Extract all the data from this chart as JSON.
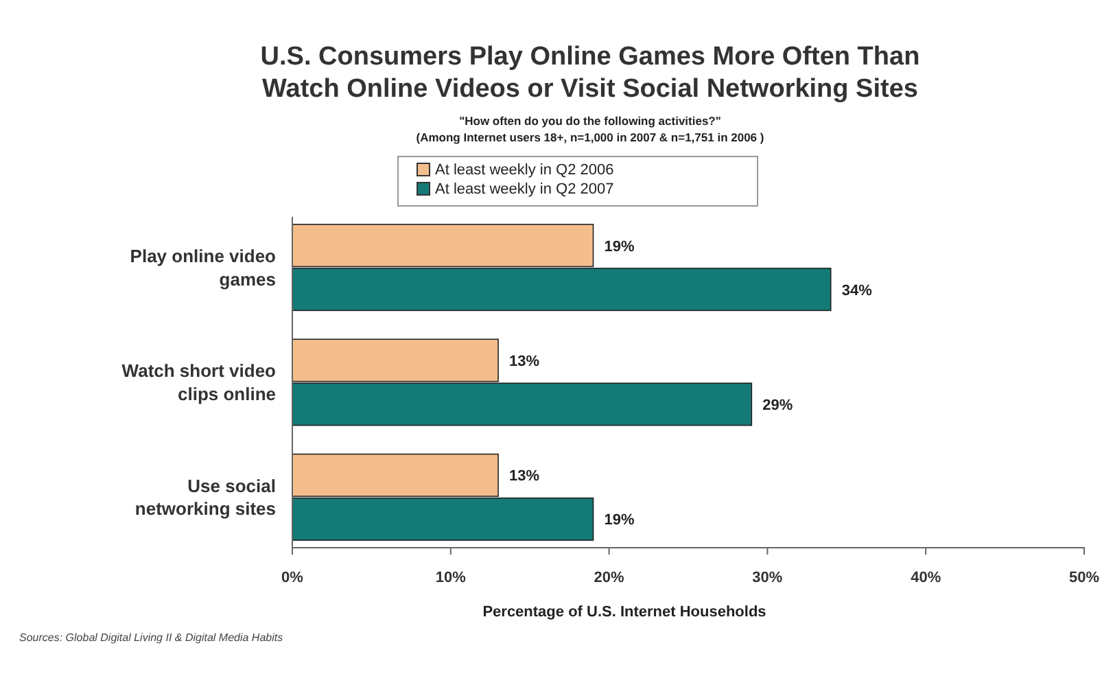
{
  "chart_data": {
    "type": "bar",
    "orientation": "horizontal",
    "title": "U.S. Consumers Play Online Games More Often Than Watch Online Videos or Visit Social Networking Sites",
    "subtitle": "\"How often do you do the following activities?\"\n(Among Internet users 18+, n=1,000 in 2007 & n=1,751 in 2006 )",
    "xlabel": "Percentage of U.S. Internet  Households",
    "categories": [
      "Play online video games",
      "Watch short video clips online",
      "Use social networking sites"
    ],
    "series": [
      {
        "name": "At least weekly in Q2 2006",
        "color": "#f4be8c",
        "values": [
          19,
          13,
          13
        ],
        "value_labels": [
          "19%",
          "13%",
          "13%"
        ]
      },
      {
        "name": "At least weekly in Q2 2007",
        "color": "#147a76",
        "values": [
          34,
          29,
          19
        ],
        "value_labels": [
          "34%",
          "29%",
          "19%"
        ]
      }
    ],
    "xlim": [
      0,
      50
    ],
    "xticks": [
      {
        "value": 0,
        "label": "0%"
      },
      {
        "value": 10,
        "label": "10%"
      },
      {
        "value": 20,
        "label": "20%"
      },
      {
        "value": 30,
        "label": "30%"
      },
      {
        "value": 40,
        "label": "40%"
      },
      {
        "value": 50,
        "label": "50%"
      }
    ],
    "legend": "top",
    "grid": false,
    "annotations": [
      "Sources:  Global Digital Living II & Digital Media Habits"
    ]
  }
}
